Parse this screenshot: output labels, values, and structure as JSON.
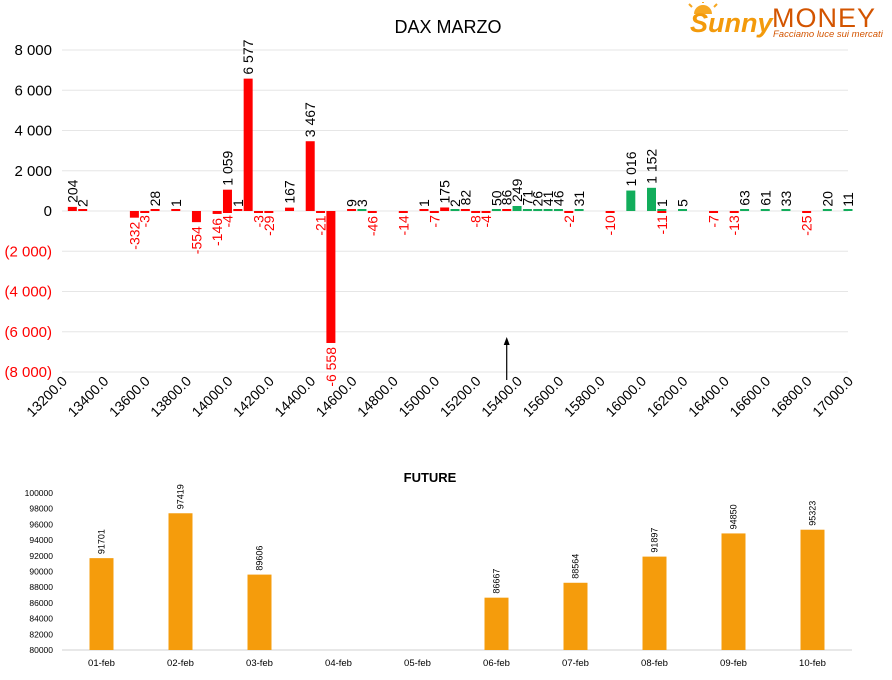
{
  "brand": {
    "name_prefix": "Sunny",
    "name_suffix": "MONEY",
    "tagline": "Facciamo luce sui mercati"
  },
  "colors": {
    "positive": "#12ad5b",
    "negative": "#ff0000",
    "future_bar": "#f59c0c",
    "grid": "#e6e6e6",
    "text": "#000000"
  },
  "chart_data": [
    {
      "type": "bar",
      "title": "DAX MARZO",
      "xlabel": "",
      "ylabel": "",
      "ylim": [
        -8000,
        8000
      ],
      "y_ticks": [
        {
          "value": 8000,
          "label": "8 000",
          "neg": false
        },
        {
          "value": 6000,
          "label": "6 000",
          "neg": false
        },
        {
          "value": 4000,
          "label": "4 000",
          "neg": false
        },
        {
          "value": 2000,
          "label": "2 000",
          "neg": false
        },
        {
          "value": 0,
          "label": "0",
          "neg": false
        },
        {
          "value": -2000,
          "label": "(2 000)",
          "neg": true
        },
        {
          "value": -4000,
          "label": "(4 000)",
          "neg": true
        },
        {
          "value": -6000,
          "label": "(6 000)",
          "neg": true
        },
        {
          "value": -8000,
          "label": "(8 000)",
          "neg": true
        }
      ],
      "xlim": [
        13200,
        17000
      ],
      "x_ticks": [
        "13200.0",
        "13400.0",
        "13600.0",
        "13800.0",
        "14000.0",
        "14200.0",
        "14400.0",
        "14600.0",
        "14800.0",
        "15000.0",
        "15200.0",
        "15400.0",
        "15600.0",
        "15800.0",
        "16000.0",
        "16200.0",
        "16400.0",
        "16600.0",
        "16800.0",
        "17000.0"
      ],
      "grid": "horizontal",
      "marker": {
        "x": 15350,
        "note": "arrow indicating current price"
      },
      "series": [
        {
          "sign": "positive",
          "points": [
            {
              "x": 13250,
              "value": 204,
              "label": "204",
              "color": "negative"
            },
            {
              "x": 13300,
              "value": 2,
              "label": "2",
              "color": "negative"
            },
            {
              "x": 13650,
              "value": 28,
              "label": "28",
              "color": "negative"
            },
            {
              "x": 13750,
              "value": 1,
              "label": "1",
              "color": "negative"
            },
            {
              "x": 14000,
              "value": 1059,
              "label": "1 059",
              "color": "negative"
            },
            {
              "x": 14050,
              "value": 1,
              "label": "1",
              "color": "negative"
            },
            {
              "x": 14100,
              "value": 6577,
              "label": "6 577",
              "color": "negative"
            },
            {
              "x": 14300,
              "value": 167,
              "label": "167",
              "color": "negative"
            },
            {
              "x": 14400,
              "value": 3467,
              "label": "3 467",
              "color": "negative"
            },
            {
              "x": 14600,
              "value": 9,
              "label": "9",
              "color": "negative"
            },
            {
              "x": 14650,
              "value": 3,
              "label": "3",
              "color": "positive"
            },
            {
              "x": 14950,
              "value": 1,
              "label": "1",
              "color": "negative"
            },
            {
              "x": 15050,
              "value": 175,
              "label": "175",
              "color": "negative"
            },
            {
              "x": 15100,
              "value": 2,
              "label": "2",
              "color": "positive"
            },
            {
              "x": 15150,
              "value": 82,
              "label": "82",
              "color": "negative"
            },
            {
              "x": 15300,
              "value": 50,
              "label": "50",
              "color": "positive"
            },
            {
              "x": 15350,
              "value": 86,
              "label": "86",
              "color": "negative"
            },
            {
              "x": 15400,
              "value": 249,
              "label": "249",
              "color": "positive"
            },
            {
              "x": 15450,
              "value": 71,
              "label": "71",
              "color": "positive"
            },
            {
              "x": 15500,
              "value": 26,
              "label": "26",
              "color": "positive"
            },
            {
              "x": 15550,
              "value": 41,
              "label": "41",
              "color": "positive"
            },
            {
              "x": 15600,
              "value": 46,
              "label": "46",
              "color": "positive"
            },
            {
              "x": 15700,
              "value": 31,
              "label": "31",
              "color": "positive"
            },
            {
              "x": 15950,
              "value": 1016,
              "label": "1 016",
              "color": "positive"
            },
            {
              "x": 16050,
              "value": 1152,
              "label": "1 152",
              "color": "positive"
            },
            {
              "x": 16100,
              "value": 1,
              "label": "1",
              "color": "positive"
            },
            {
              "x": 16200,
              "value": 5,
              "label": "5",
              "color": "positive"
            },
            {
              "x": 16500,
              "value": 63,
              "label": "63",
              "color": "positive"
            },
            {
              "x": 16600,
              "value": 61,
              "label": "61",
              "color": "positive"
            },
            {
              "x": 16700,
              "value": 33,
              "label": "33",
              "color": "positive"
            },
            {
              "x": 16900,
              "value": 20,
              "label": "20",
              "color": "positive"
            },
            {
              "x": 17000,
              "value": 11,
              "label": "11",
              "color": "positive"
            }
          ]
        },
        {
          "sign": "negative",
          "points": [
            {
              "x": 13550,
              "value": -332,
              "label": "-332"
            },
            {
              "x": 13600,
              "value": -3,
              "label": "-3"
            },
            {
              "x": 13850,
              "value": -554,
              "label": "-554"
            },
            {
              "x": 13950,
              "value": -146,
              "label": "-146"
            },
            {
              "x": 14000,
              "value": -4,
              "label": "-4"
            },
            {
              "x": 14150,
              "value": -3,
              "label": "-3"
            },
            {
              "x": 14200,
              "value": -29,
              "label": "-29"
            },
            {
              "x": 14450,
              "value": -21,
              "label": "-21"
            },
            {
              "x": 14500,
              "value": -6558,
              "label": "-6 558"
            },
            {
              "x": 14700,
              "value": -46,
              "label": "-46"
            },
            {
              "x": 14850,
              "value": -14,
              "label": "-14"
            },
            {
              "x": 15000,
              "value": -7,
              "label": "-7"
            },
            {
              "x": 15200,
              "value": -8,
              "label": "-8"
            },
            {
              "x": 15250,
              "value": -4,
              "label": "-4"
            },
            {
              "x": 15650,
              "value": -2,
              "label": "-2"
            },
            {
              "x": 15850,
              "value": -10,
              "label": "-10"
            },
            {
              "x": 16100,
              "value": -11,
              "label": "-11"
            },
            {
              "x": 16350,
              "value": -7,
              "label": "-7"
            },
            {
              "x": 16450,
              "value": -13,
              "label": "-13"
            },
            {
              "x": 16800,
              "value": -25,
              "label": "-25"
            }
          ]
        }
      ]
    },
    {
      "type": "bar",
      "title": "FUTURE",
      "xlabel": "",
      "ylabel": "",
      "ylim": [
        80000,
        100000
      ],
      "y_ticks": [
        "100000",
        "98000",
        "96000",
        "94000",
        "92000",
        "90000",
        "88000",
        "86000",
        "84000",
        "82000",
        "80000"
      ],
      "categories": [
        "01-feb",
        "02-feb",
        "03-feb",
        "04-feb",
        "05-feb",
        "06-feb",
        "07-feb",
        "08-feb",
        "09-feb",
        "10-feb"
      ],
      "values": [
        91701,
        97419,
        89606,
        null,
        null,
        86667,
        88564,
        91897,
        94850,
        95323
      ],
      "value_labels": [
        "91701",
        "97419",
        "89606",
        "",
        "",
        "86667",
        "88564",
        "91897",
        "94850",
        "95323"
      ],
      "grid": "none"
    }
  ]
}
